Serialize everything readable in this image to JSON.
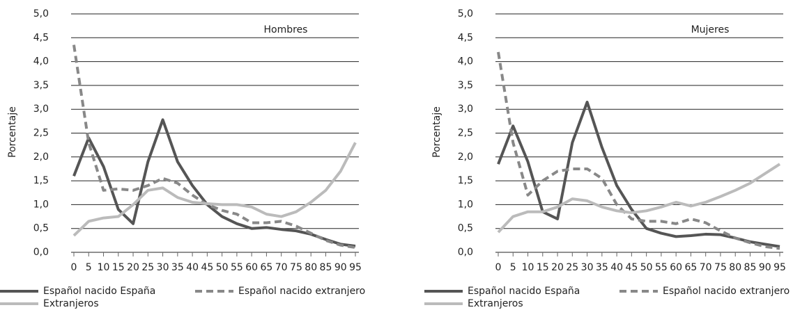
{
  "chart_data": [
    {
      "type": "line",
      "annotation": "Hombres",
      "y_label": "Porcentaje",
      "x": [
        0,
        5,
        10,
        15,
        20,
        25,
        30,
        35,
        40,
        45,
        50,
        55,
        60,
        65,
        70,
        75,
        80,
        85,
        90,
        95
      ],
      "xlim": [
        0,
        95
      ],
      "xticks": [
        0,
        5,
        10,
        15,
        20,
        25,
        30,
        35,
        40,
        45,
        50,
        55,
        60,
        65,
        70,
        75,
        80,
        85,
        90,
        95
      ],
      "ylim": [
        0,
        5
      ],
      "yticks": [
        {
          "value": 0,
          "label": "0,0"
        },
        {
          "value": 0.5,
          "label": "0,5"
        },
        {
          "value": 1,
          "label": "1,0"
        },
        {
          "value": 1.5,
          "label": "1,5"
        },
        {
          "value": 2,
          "label": "2,0"
        },
        {
          "value": 2.5,
          "label": "2,5"
        },
        {
          "value": 3,
          "label": "3,0"
        },
        {
          "value": 3.5,
          "label": "3,5"
        },
        {
          "value": 4,
          "label": "4,0"
        },
        {
          "value": 4.5,
          "label": "4,5"
        },
        {
          "value": 5,
          "label": "5,0"
        }
      ],
      "grid": true,
      "series": [
        {
          "name": "Español nacido España",
          "color": "#555555",
          "dashed": false,
          "values": [
            1.6,
            2.4,
            1.8,
            0.9,
            0.6,
            1.9,
            2.78,
            1.9,
            1.4,
            1.0,
            0.75,
            0.6,
            0.5,
            0.52,
            0.48,
            0.45,
            0.38,
            0.27,
            0.17,
            0.13
          ]
        },
        {
          "name": "Español nacido extranjero",
          "color": "#888888",
          "dashed": true,
          "values": [
            4.35,
            2.3,
            1.3,
            1.33,
            1.3,
            1.4,
            1.55,
            1.45,
            1.2,
            1.0,
            0.88,
            0.8,
            0.62,
            0.62,
            0.65,
            0.55,
            0.4,
            0.25,
            0.15,
            0.1
          ]
        },
        {
          "name": "Extranjeros",
          "color": "#bbbbbb",
          "dashed": false,
          "values": [
            0.35,
            0.65,
            0.72,
            0.75,
            1.0,
            1.3,
            1.35,
            1.15,
            1.05,
            1.02,
            1.0,
            1.0,
            0.95,
            0.8,
            0.75,
            0.85,
            1.05,
            1.3,
            1.7,
            2.3
          ]
        }
      ]
    },
    {
      "type": "line",
      "annotation": "Mujeres",
      "y_label": "Porcentaje",
      "x": [
        0,
        5,
        10,
        15,
        20,
        25,
        30,
        35,
        40,
        45,
        50,
        55,
        60,
        65,
        70,
        75,
        80,
        85,
        90,
        95
      ],
      "xlim": [
        0,
        95
      ],
      "xticks": [
        0,
        5,
        10,
        15,
        20,
        25,
        30,
        35,
        40,
        45,
        50,
        55,
        60,
        65,
        70,
        75,
        80,
        85,
        90,
        95
      ],
      "ylim": [
        0,
        5
      ],
      "yticks": [
        {
          "value": 0,
          "label": "0,0"
        },
        {
          "value": 0.5,
          "label": "0,5"
        },
        {
          "value": 1,
          "label": "1,0"
        },
        {
          "value": 1.5,
          "label": "1,5"
        },
        {
          "value": 2,
          "label": "2,0"
        },
        {
          "value": 2.5,
          "label": "2,5"
        },
        {
          "value": 3,
          "label": "3,0"
        },
        {
          "value": 3.5,
          "label": "3,5"
        },
        {
          "value": 4,
          "label": "4,0"
        },
        {
          "value": 4.5,
          "label": "4,5"
        },
        {
          "value": 5,
          "label": "5,0"
        }
      ],
      "grid": true,
      "series": [
        {
          "name": "Español nacido España",
          "color": "#555555",
          "dashed": false,
          "values": [
            1.85,
            2.65,
            1.9,
            0.85,
            0.7,
            2.3,
            3.15,
            2.2,
            1.4,
            0.9,
            0.5,
            0.4,
            0.33,
            0.35,
            0.38,
            0.37,
            0.3,
            0.22,
            0.17,
            0.12
          ]
        },
        {
          "name": "Español nacido extranjero",
          "color": "#888888",
          "dashed": true,
          "values": [
            4.2,
            2.3,
            1.2,
            1.5,
            1.7,
            1.75,
            1.75,
            1.55,
            1.0,
            0.7,
            0.65,
            0.65,
            0.6,
            0.7,
            0.62,
            0.45,
            0.3,
            0.2,
            0.12,
            0.08
          ]
        },
        {
          "name": "Extranjeros",
          "color": "#bbbbbb",
          "dashed": false,
          "values": [
            0.42,
            0.75,
            0.85,
            0.85,
            0.95,
            1.12,
            1.08,
            0.95,
            0.87,
            0.83,
            0.87,
            0.95,
            1.05,
            0.97,
            1.05,
            1.17,
            1.3,
            1.45,
            1.65,
            1.85
          ]
        }
      ]
    }
  ]
}
